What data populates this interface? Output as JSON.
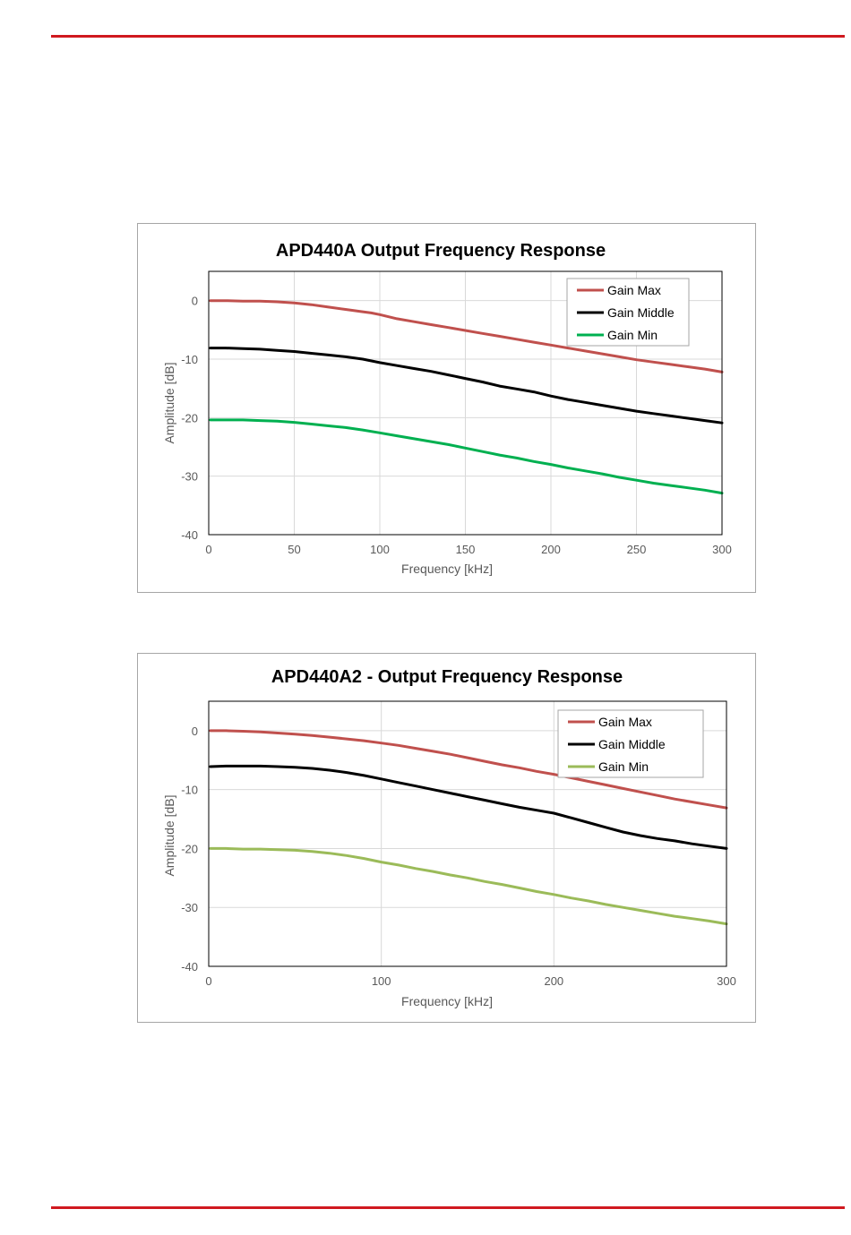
{
  "page": {
    "accent_color": "#d0191f"
  },
  "chart_data": [
    {
      "type": "line",
      "title": "APD440A Output Frequency Response",
      "xlabel": "Frequency [kHz]",
      "ylabel": "Amplitude [dB]",
      "xlim": [
        0,
        300
      ],
      "ylim": [
        -40,
        5
      ],
      "xticks": [
        0,
        50,
        100,
        150,
        200,
        250,
        300
      ],
      "yticks": [
        0,
        -10,
        -20,
        -30,
        -40
      ],
      "grid": true,
      "legend_position": "top-right",
      "series": [
        {
          "name": "Gain Max",
          "color": "#c0504d",
          "x": [
            1,
            10,
            20,
            30,
            40,
            50,
            60,
            70,
            80,
            90,
            95,
            100,
            110,
            120,
            130,
            140,
            150,
            160,
            170,
            180,
            190,
            200,
            210,
            220,
            230,
            240,
            250,
            260,
            270,
            280,
            290,
            300
          ],
          "y": [
            0,
            0,
            -0.1,
            -0.1,
            -0.2,
            -0.4,
            -0.7,
            -1.1,
            -1.5,
            -1.9,
            -2.1,
            -2.4,
            -3.1,
            -3.6,
            -4.1,
            -4.6,
            -5.1,
            -5.6,
            -6.1,
            -6.6,
            -7.1,
            -7.6,
            -8.1,
            -8.6,
            -9.1,
            -9.6,
            -10.1,
            -10.5,
            -10.9,
            -11.3,
            -11.7,
            -12.2
          ]
        },
        {
          "name": "Gain Middle",
          "color": "#000000",
          "x": [
            1,
            10,
            20,
            30,
            40,
            50,
            60,
            70,
            80,
            90,
            100,
            110,
            120,
            130,
            140,
            150,
            160,
            170,
            180,
            190,
            200,
            210,
            220,
            230,
            240,
            250,
            260,
            270,
            280,
            290,
            300
          ],
          "y": [
            -8.1,
            -8.1,
            -8.2,
            -8.3,
            -8.5,
            -8.7,
            -9.0,
            -9.3,
            -9.6,
            -10.0,
            -10.6,
            -11.1,
            -11.6,
            -12.1,
            -12.7,
            -13.3,
            -13.9,
            -14.6,
            -15.1,
            -15.6,
            -16.3,
            -16.9,
            -17.4,
            -17.9,
            -18.4,
            -18.9,
            -19.3,
            -19.7,
            -20.1,
            -20.5,
            -20.9
          ]
        },
        {
          "name": "Gain Min",
          "color": "#00b050",
          "x": [
            1,
            10,
            20,
            30,
            40,
            50,
            60,
            70,
            80,
            90,
            100,
            110,
            120,
            130,
            140,
            150,
            160,
            170,
            180,
            190,
            200,
            210,
            220,
            230,
            240,
            250,
            260,
            270,
            280,
            290,
            300
          ],
          "y": [
            -20.4,
            -20.4,
            -20.4,
            -20.5,
            -20.6,
            -20.8,
            -21.1,
            -21.4,
            -21.7,
            -22.1,
            -22.6,
            -23.1,
            -23.6,
            -24.1,
            -24.6,
            -25.2,
            -25.8,
            -26.4,
            -26.9,
            -27.5,
            -28.0,
            -28.6,
            -29.1,
            -29.6,
            -30.2,
            -30.7,
            -31.2,
            -31.6,
            -32.0,
            -32.4,
            -32.9
          ]
        }
      ]
    },
    {
      "type": "line",
      "title": "APD440A2 - Output Frequency Response",
      "xlabel": "Frequency [kHz]",
      "ylabel": "Amplitude [dB]",
      "xlim": [
        0,
        300
      ],
      "ylim": [
        -40,
        5
      ],
      "xticks": [
        0,
        100,
        200,
        300
      ],
      "yticks": [
        0,
        -10,
        -20,
        -30,
        -40
      ],
      "grid": true,
      "legend_position": "top-right",
      "series": [
        {
          "name": "Gain Max",
          "color": "#c0504d",
          "x": [
            1,
            10,
            20,
            30,
            40,
            50,
            60,
            70,
            80,
            90,
            100,
            110,
            120,
            130,
            140,
            150,
            160,
            170,
            180,
            190,
            200,
            210,
            220,
            230,
            240,
            250,
            260,
            270,
            280,
            290,
            300
          ],
          "y": [
            0,
            0,
            -0.1,
            -0.2,
            -0.4,
            -0.6,
            -0.8,
            -1.1,
            -1.4,
            -1.7,
            -2.1,
            -2.5,
            -3.0,
            -3.5,
            -4.0,
            -4.6,
            -5.2,
            -5.8,
            -6.3,
            -6.9,
            -7.4,
            -8.0,
            -8.6,
            -9.2,
            -9.8,
            -10.4,
            -11.0,
            -11.6,
            -12.1,
            -12.6,
            -13.1
          ]
        },
        {
          "name": "Gain Middle",
          "color": "#000000",
          "x": [
            1,
            10,
            20,
            30,
            40,
            50,
            60,
            70,
            80,
            90,
            100,
            110,
            120,
            130,
            140,
            150,
            160,
            170,
            180,
            190,
            200,
            210,
            220,
            230,
            240,
            250,
            260,
            270,
            280,
            290,
            300
          ],
          "y": [
            -6.1,
            -6.0,
            -6.0,
            -6.0,
            -6.1,
            -6.2,
            -6.4,
            -6.7,
            -7.1,
            -7.6,
            -8.2,
            -8.8,
            -9.4,
            -10.0,
            -10.6,
            -11.2,
            -11.8,
            -12.4,
            -13.0,
            -13.5,
            -14.0,
            -14.8,
            -15.6,
            -16.4,
            -17.2,
            -17.8,
            -18.3,
            -18.7,
            -19.2,
            -19.6,
            -20.0
          ]
        },
        {
          "name": "Gain Min",
          "color": "#9bbb59",
          "x": [
            1,
            10,
            20,
            30,
            40,
            50,
            60,
            70,
            80,
            90,
            100,
            110,
            120,
            130,
            140,
            150,
            160,
            170,
            180,
            190,
            200,
            210,
            220,
            230,
            240,
            250,
            260,
            270,
            280,
            290,
            300
          ],
          "y": [
            -20.0,
            -20.0,
            -20.1,
            -20.1,
            -20.2,
            -20.3,
            -20.5,
            -20.8,
            -21.2,
            -21.7,
            -22.3,
            -22.8,
            -23.4,
            -23.9,
            -24.5,
            -25.0,
            -25.6,
            -26.1,
            -26.7,
            -27.3,
            -27.8,
            -28.4,
            -28.9,
            -29.5,
            -30.0,
            -30.5,
            -31.0,
            -31.5,
            -31.9,
            -32.3,
            -32.8
          ]
        }
      ]
    }
  ]
}
